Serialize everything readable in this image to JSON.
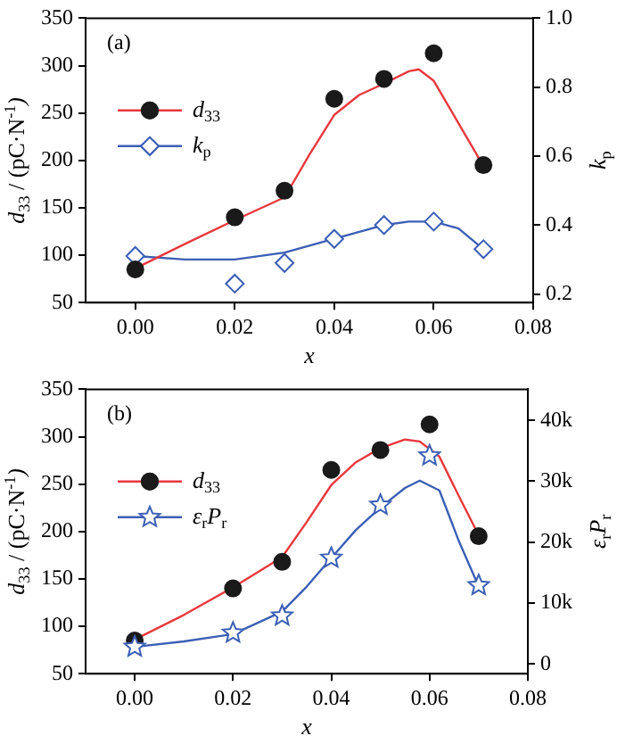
{
  "chart_data": [
    {
      "type": "scatter",
      "xlabel": "x",
      "ylabel": "d$_{33}$ / (pC·N$^{-1}$)",
      "y2label": "k$_{p}$",
      "annotations": [
        "(a)"
      ],
      "x": [
        0.0,
        0.02,
        0.03,
        0.04,
        0.05,
        0.06,
        0.07
      ],
      "series": [
        {
          "name": "d$_{33}$",
          "color": "#1a1a1a",
          "marker": "circle",
          "values": [
            85,
            140,
            168,
            265,
            286,
            313,
            195
          ]
        },
        {
          "type": "line",
          "color": "#e8383d",
          "x": [
            0.0,
            0.01,
            0.02,
            0.025,
            0.03,
            0.035,
            0.04,
            0.045,
            0.05,
            0.055,
            0.057,
            0.06,
            0.065,
            0.07
          ],
          "values": [
            86,
            112,
            137,
            149,
            161,
            206,
            248,
            269,
            281,
            294,
            296,
            284,
            239,
            194
          ]
        },
        {
          "name": "k$_{p}$",
          "axis": "y2",
          "color": "#3b5fb5",
          "marker": "diamond",
          "values": [
            0.31,
            0.23,
            0.29,
            0.36,
            0.4,
            0.41,
            0.33
          ]
        },
        {
          "type": "line",
          "axis": "y2",
          "color": "#3b5fb5",
          "x": [
            0.0,
            0.01,
            0.02,
            0.03,
            0.04,
            0.05,
            0.055,
            0.06,
            0.065,
            0.07
          ],
          "values": [
            0.31,
            0.3,
            0.3,
            0.32,
            0.36,
            0.4,
            0.41,
            0.41,
            0.39,
            0.33
          ]
        }
      ],
      "xlim": [
        -0.01,
        0.08
      ],
      "xticks": [
        {
          "value": 0,
          "label": "0.00"
        },
        {
          "value": 0.02,
          "label": "0.02"
        },
        {
          "value": 0.04,
          "label": "0.04"
        },
        {
          "value": 0.06,
          "label": "0.06"
        },
        {
          "value": 0.08,
          "label": "0.08"
        }
      ],
      "ylim": [
        50,
        350
      ],
      "yticks": [
        50,
        100,
        150,
        200,
        250,
        300,
        350
      ],
      "y2lim": [
        0.175,
        1.0
      ],
      "y2ticks": [
        0.2,
        0.4,
        0.6,
        0.8,
        {
          "value": 1.0,
          "label": "1.0"
        }
      ],
      "grid": false,
      "legend": "left"
    },
    {
      "type": "scatter",
      "xlabel": "x",
      "ylabel": "d$_{33}$ / (pC·N$^{-1}$)",
      "y2label": "ε$_{r}$P$_{r}$",
      "annotations": [
        "(b)"
      ],
      "x": [
        0.0,
        0.02,
        0.03,
        0.04,
        0.05,
        0.06,
        0.07
      ],
      "series": [
        {
          "name": "d$_{33}$",
          "color": "#1a1a1a",
          "marker": "circle",
          "values": [
            85,
            140,
            168,
            265,
            286,
            313,
            195
          ]
        },
        {
          "type": "line",
          "color": "#e8383d",
          "x": [
            0.0,
            0.01,
            0.02,
            0.03,
            0.035,
            0.04,
            0.045,
            0.05,
            0.055,
            0.058,
            0.062,
            0.066,
            0.07
          ],
          "values": [
            86,
            112,
            141,
            173,
            210,
            249,
            273,
            288,
            297,
            295,
            279,
            237,
            196
          ]
        },
        {
          "name": "ε$_{r}$P$_{r}$",
          "axis": "y2",
          "color": "#3b5fb5",
          "marker": "star",
          "values": [
            2800,
            5100,
            7900,
            17400,
            26100,
            34200,
            12900
          ]
        },
        {
          "type": "line",
          "axis": "y2",
          "color": "#3b5fb5",
          "x": [
            0.0,
            0.01,
            0.02,
            0.03,
            0.035,
            0.04,
            0.045,
            0.05,
            0.055,
            0.058,
            0.062,
            0.066,
            0.07
          ],
          "values": [
            2800,
            3700,
            4900,
            8600,
            12700,
            17400,
            22000,
            25700,
            28900,
            30100,
            28500,
            20100,
            12700
          ]
        }
      ],
      "xlim": [
        -0.01,
        0.08
      ],
      "xticks": [
        {
          "value": 0,
          "label": "0.00"
        },
        {
          "value": 0.02,
          "label": "0.02"
        },
        {
          "value": 0.04,
          "label": "0.04"
        },
        {
          "value": 0.06,
          "label": "0.06"
        },
        {
          "value": 0.08,
          "label": "0.08"
        }
      ],
      "ylim": [
        50,
        350
      ],
      "yticks": [
        50,
        100,
        150,
        200,
        250,
        300,
        350
      ],
      "y2lim": [
        -1600,
        45100
      ],
      "y2ticks": [
        0,
        {
          "value": 10000,
          "label": "10k"
        },
        {
          "value": 20000,
          "label": "20k"
        },
        {
          "value": 30000,
          "label": "30k"
        },
        {
          "value": 40000,
          "label": "40k"
        }
      ],
      "grid": false,
      "legend": "left"
    }
  ]
}
